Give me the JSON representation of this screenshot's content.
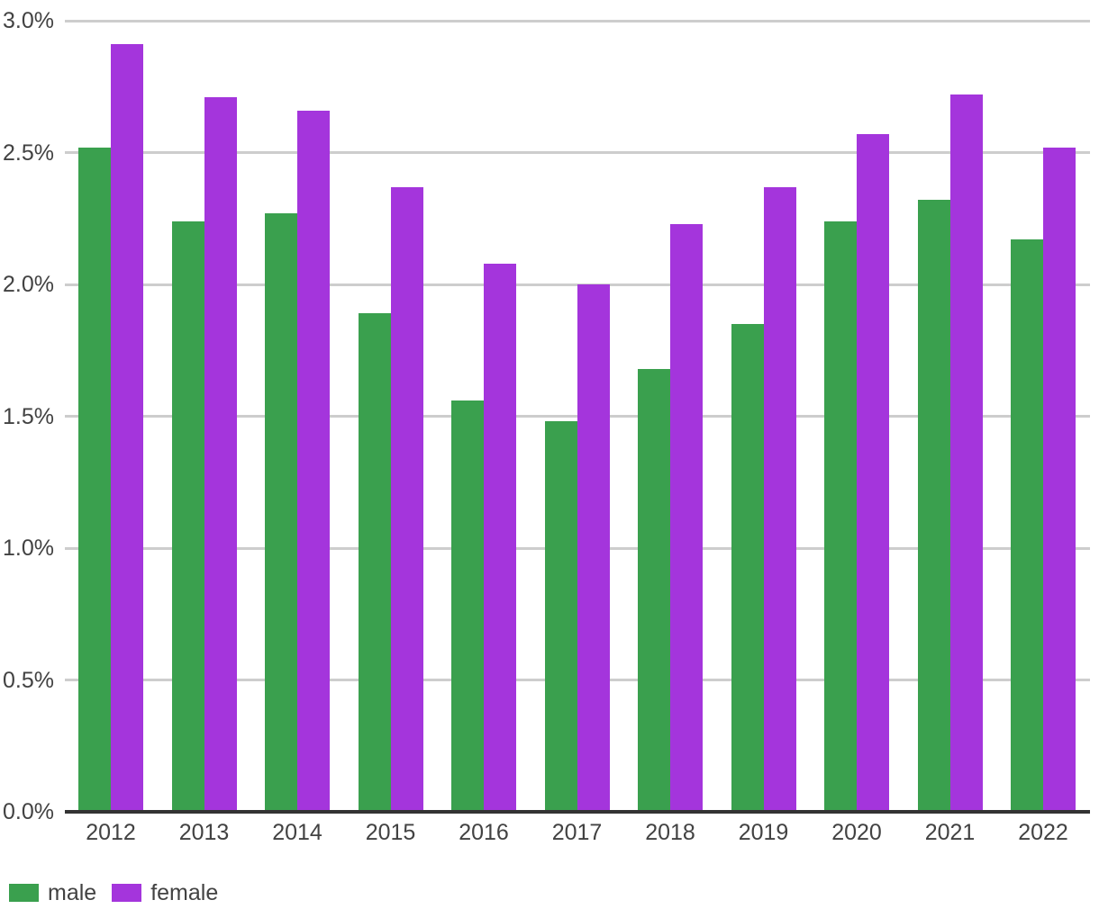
{
  "chart_data": {
    "type": "bar",
    "title": "",
    "xlabel": "",
    "ylabel": "",
    "categories": [
      "2012",
      "2013",
      "2014",
      "2015",
      "2016",
      "2017",
      "2018",
      "2019",
      "2020",
      "2021",
      "2022"
    ],
    "series": [
      {
        "name": "male",
        "color": "#3aa04e",
        "values": [
          2.52,
          2.24,
          2.27,
          1.89,
          1.56,
          1.48,
          1.68,
          1.85,
          2.24,
          2.32,
          2.17
        ]
      },
      {
        "name": "female",
        "color": "#a435dc",
        "values": [
          2.91,
          2.71,
          2.66,
          2.37,
          2.08,
          2.0,
          2.23,
          2.37,
          2.57,
          2.72,
          2.52
        ]
      }
    ],
    "ylim": [
      0,
      3
    ],
    "yticks": [
      {
        "value": 0.0,
        "label": "0.0%"
      },
      {
        "value": 0.5,
        "label": "0.5%"
      },
      {
        "value": 1.0,
        "label": "1.0%"
      },
      {
        "value": 1.5,
        "label": "1.5%"
      },
      {
        "value": 2.0,
        "label": "2.0%"
      },
      {
        "value": 2.5,
        "label": "2.5%"
      },
      {
        "value": 3.0,
        "label": "3.0%"
      }
    ],
    "grid": true,
    "legend_position": "bottom-left",
    "styles": {
      "gridline_color": "#cdcdcd",
      "axis_line_color": "#333333",
      "label_color": "#424242",
      "background": "#ffffff"
    }
  }
}
